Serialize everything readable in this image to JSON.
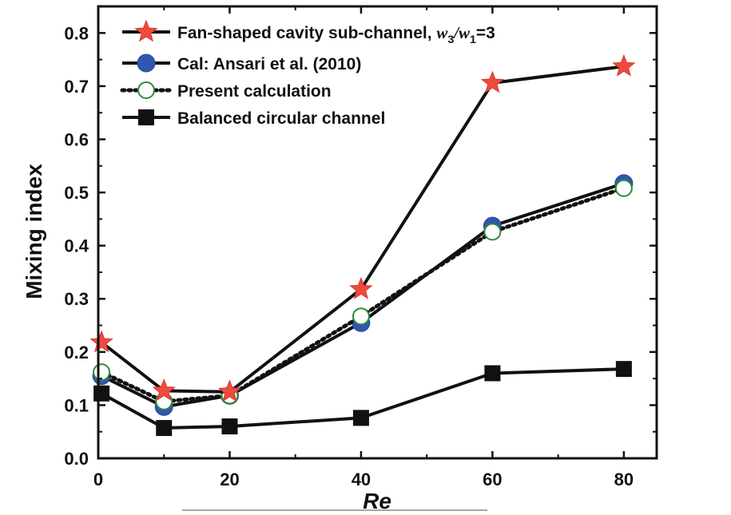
{
  "chart_data": {
    "type": "line",
    "title": "",
    "xlabel": "Re",
    "ylabel": "Mixing index",
    "xlim": [
      0,
      85
    ],
    "ylim": [
      0,
      0.85
    ],
    "xticks": [
      "0",
      "20",
      "40",
      "60",
      "80"
    ],
    "yticks": [
      "0.0",
      "0.1",
      "0.2",
      "0.3",
      "0.4",
      "0.5",
      "0.6",
      "0.7",
      "0.8"
    ],
    "grid": false,
    "legend_position": "top-left",
    "series": [
      {
        "name": "Fan-shaped cavity sub-channel, w3/w1=3",
        "legend_prefix": "Fan-shaped cavity sub-channel, ",
        "legend_w": "w",
        "legend_sub1": "3",
        "legend_slash": "/",
        "legend_sub2": "1",
        "legend_suffix": "=3",
        "marker": "star",
        "line": "solid",
        "color": "#f04a3c",
        "x": [
          0.5,
          10,
          20,
          40,
          60,
          80
        ],
        "y": [
          0.218,
          0.127,
          0.125,
          0.318,
          0.706,
          0.737
        ]
      },
      {
        "name": "Cal: Ansari et al. (2010)",
        "marker": "circle-filled",
        "line": "solid",
        "color": "#2f56b0",
        "x": [
          0.5,
          10,
          20,
          40,
          60,
          80
        ],
        "y": [
          0.155,
          0.097,
          0.118,
          0.255,
          0.437,
          0.517
        ]
      },
      {
        "name": "Present calculation",
        "marker": "circle-open",
        "line": "dotted",
        "color": "#2e8b3a",
        "x": [
          0.5,
          10,
          20,
          40,
          60,
          80
        ],
        "y": [
          0.162,
          0.107,
          0.118,
          0.267,
          0.426,
          0.508
        ]
      },
      {
        "name": "Balanced circular channel",
        "marker": "square",
        "line": "solid",
        "color": "#111111",
        "x": [
          0.5,
          10,
          20,
          40,
          60,
          80
        ],
        "y": [
          0.122,
          0.057,
          0.06,
          0.076,
          0.16,
          0.168
        ]
      }
    ]
  }
}
